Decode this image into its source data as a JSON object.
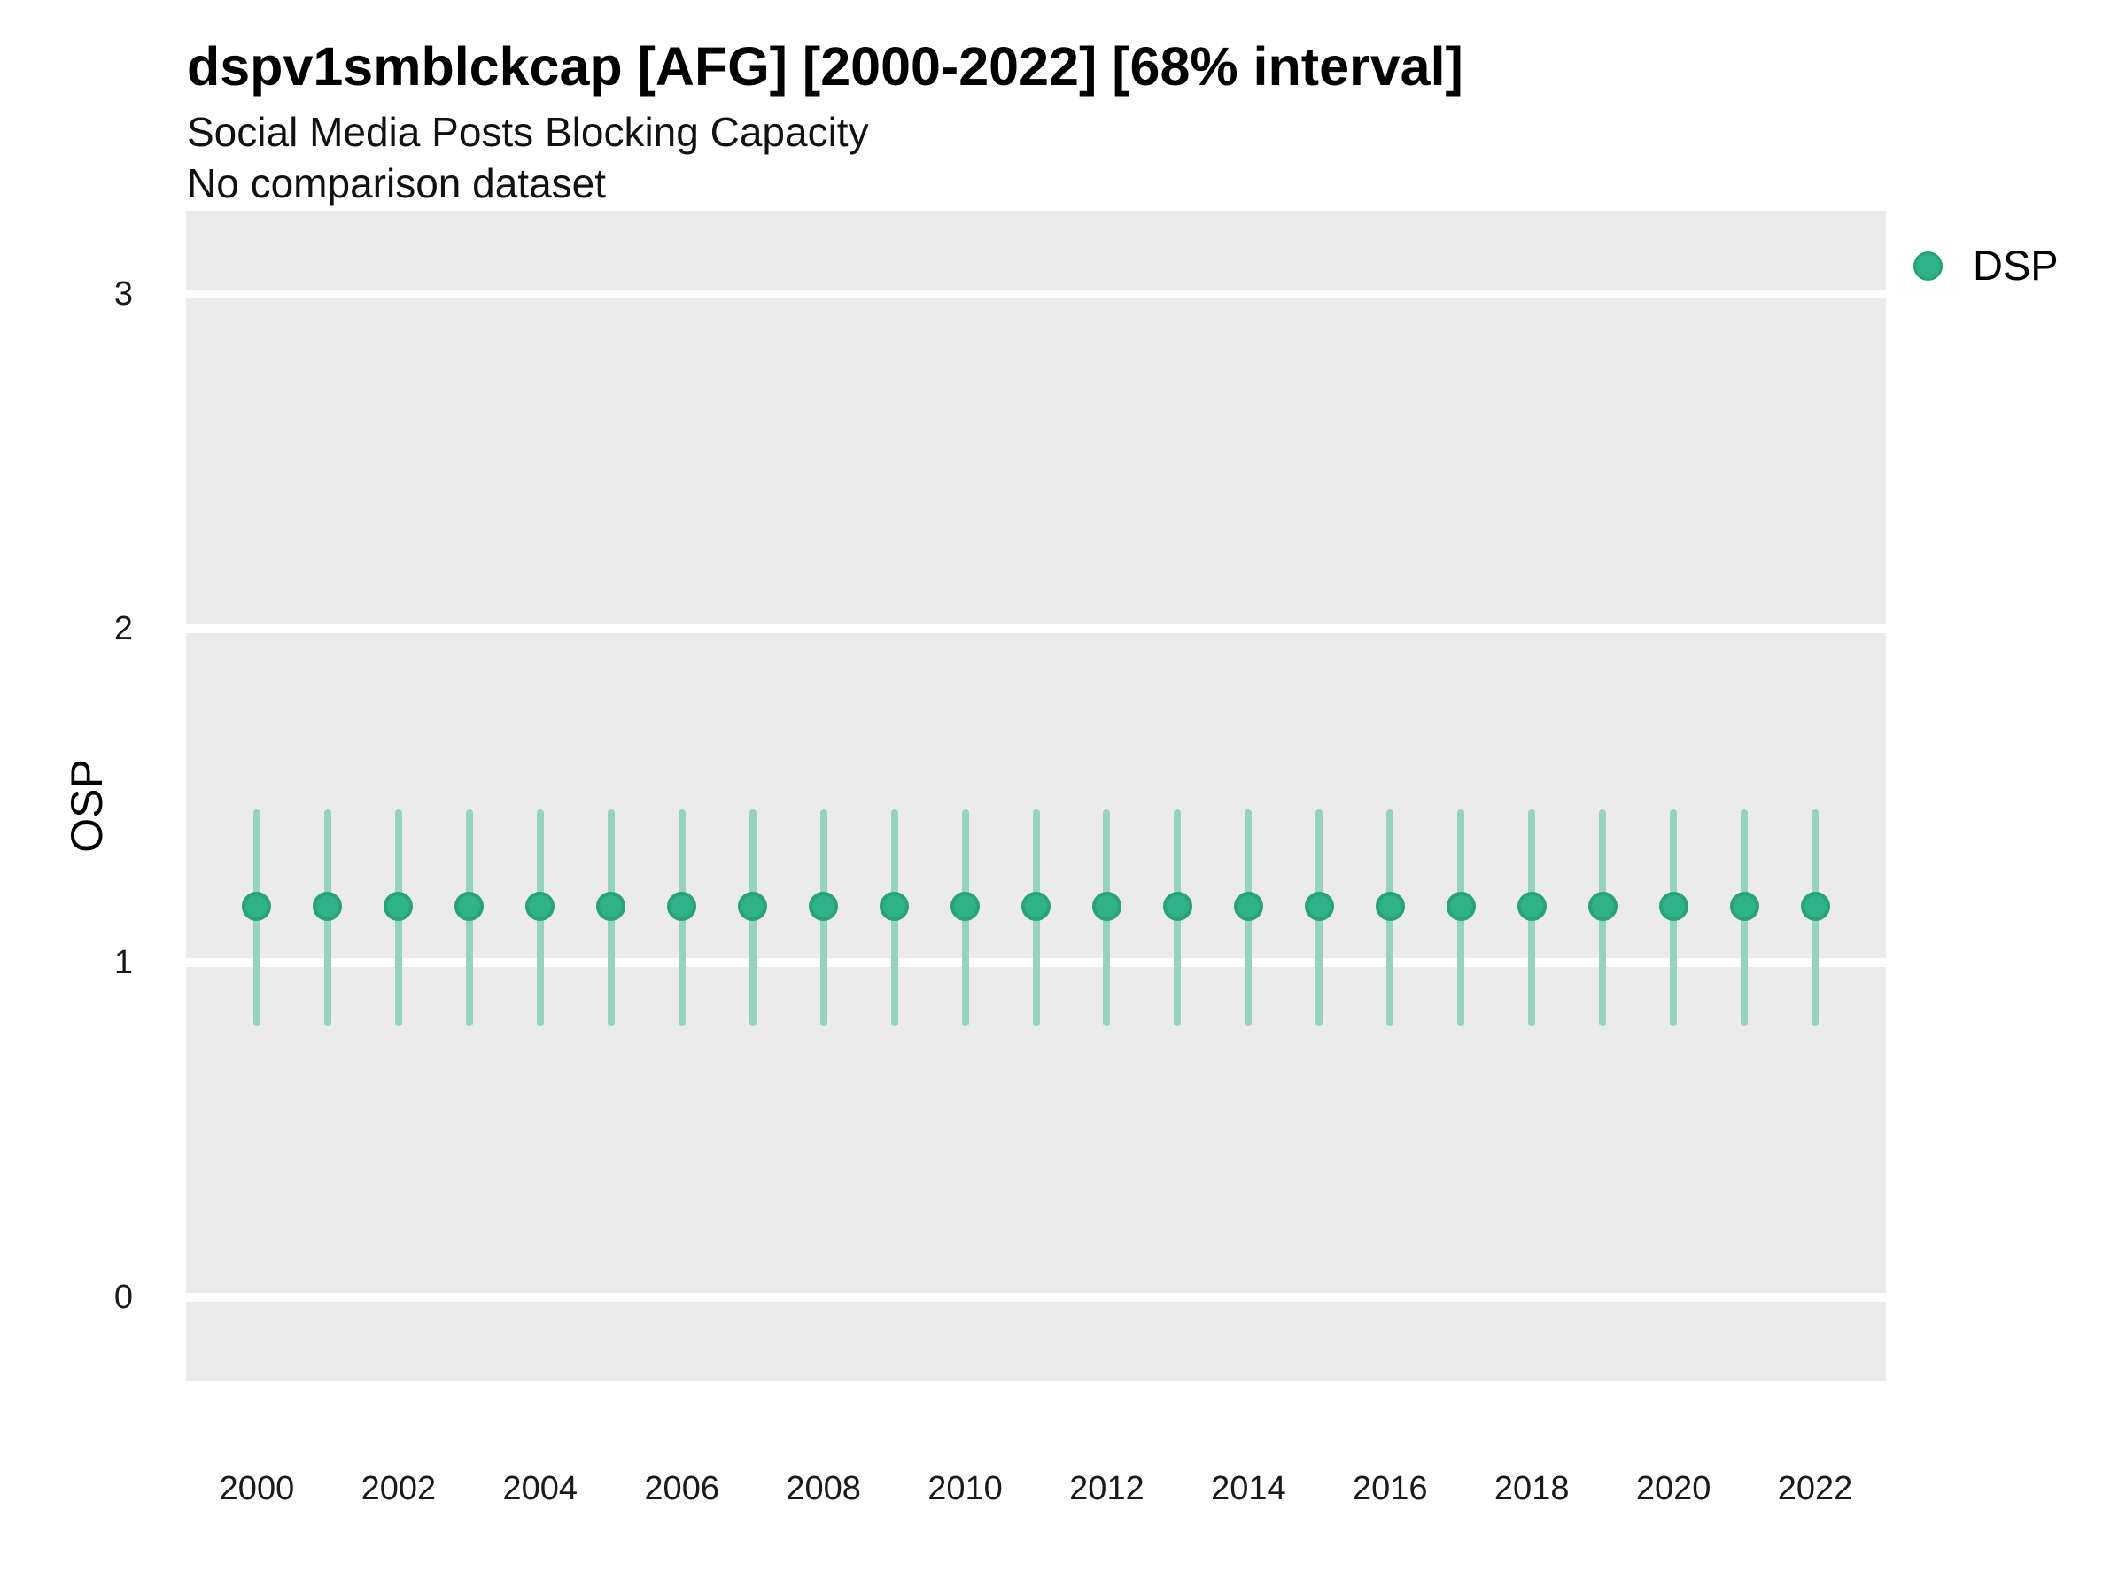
{
  "header": {
    "title": "dspv1smblckcap [AFG] [2000-2022] [68% interval]",
    "subtitle": "Social Media Posts Blocking Capacity",
    "note": "No comparison dataset"
  },
  "legend": {
    "label": "DSP",
    "position": "right-top",
    "marker": "circle"
  },
  "colors": {
    "point_fill": "#2fb287",
    "point_stroke": "#27a377",
    "interval_bar": "#96d3bc",
    "panel_background": "#ebebeb",
    "gridline": "#ffffff",
    "text": "#000000"
  },
  "chart_data": {
    "type": "scatter",
    "title": "dspv1smblckcap [AFG] [2000-2022] [68% interval]",
    "subtitle": "Social Media Posts Blocking Capacity",
    "note": "No comparison dataset",
    "xlabel": "",
    "ylabel": "OSP",
    "interval_label": "68% interval",
    "grid": "on",
    "legend_position": "right-top",
    "ylim": [
      -0.25,
      3.25
    ],
    "yticks": [
      0,
      1,
      2,
      3
    ],
    "xticks": [
      2000,
      2002,
      2004,
      2006,
      2008,
      2010,
      2012,
      2014,
      2016,
      2018,
      2020,
      2022
    ],
    "x": [
      2000,
      2001,
      2002,
      2003,
      2004,
      2005,
      2006,
      2007,
      2008,
      2009,
      2010,
      2011,
      2012,
      2013,
      2014,
      2015,
      2016,
      2017,
      2018,
      2019,
      2020,
      2021,
      2022
    ],
    "series": [
      {
        "name": "DSP",
        "estimate": [
          1.17,
          1.17,
          1.17,
          1.17,
          1.17,
          1.17,
          1.17,
          1.17,
          1.17,
          1.17,
          1.17,
          1.17,
          1.17,
          1.17,
          1.17,
          1.17,
          1.17,
          1.17,
          1.17,
          1.17,
          1.17,
          1.17,
          1.17
        ],
        "lower": [
          0.81,
          0.81,
          0.81,
          0.81,
          0.81,
          0.81,
          0.81,
          0.81,
          0.81,
          0.81,
          0.81,
          0.81,
          0.81,
          0.81,
          0.81,
          0.81,
          0.81,
          0.81,
          0.81,
          0.81,
          0.81,
          0.81,
          0.81
        ],
        "upper": [
          1.46,
          1.46,
          1.46,
          1.46,
          1.46,
          1.46,
          1.46,
          1.46,
          1.46,
          1.46,
          1.46,
          1.46,
          1.46,
          1.46,
          1.46,
          1.46,
          1.46,
          1.46,
          1.46,
          1.46,
          1.46,
          1.46,
          1.46
        ]
      }
    ]
  }
}
